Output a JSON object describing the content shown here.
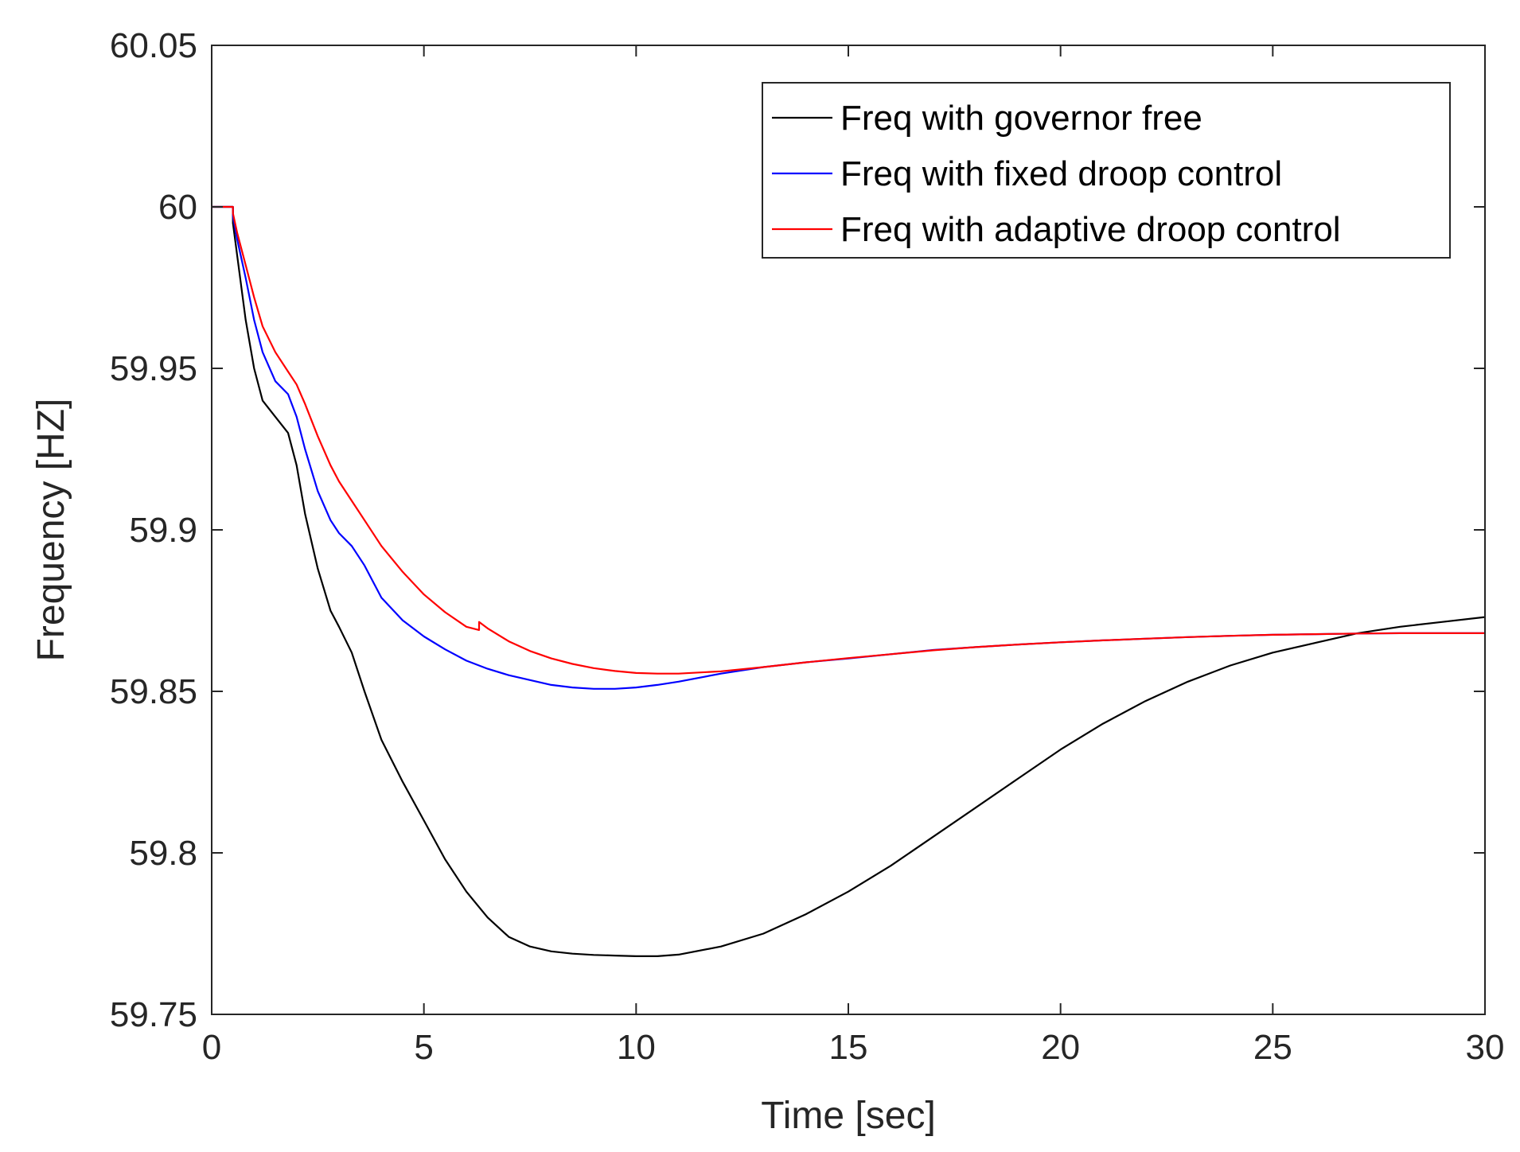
{
  "chart_data": {
    "type": "line",
    "title": "",
    "xlabel": "Time [sec]",
    "ylabel": "Frequency [HZ]",
    "xlim": [
      0,
      30
    ],
    "ylim": [
      59.75,
      60.05
    ],
    "xticks": [
      0,
      5,
      10,
      15,
      20,
      25,
      30
    ],
    "xtick_labels": [
      "0",
      "5",
      "10",
      "15",
      "20",
      "25",
      "30"
    ],
    "yticks": [
      59.75,
      59.8,
      59.85,
      59.9,
      59.95,
      60,
      60.05
    ],
    "ytick_labels": [
      "59.75",
      "59.8",
      "59.85",
      "59.9",
      "59.95",
      "60",
      "60.05"
    ],
    "grid": false,
    "legend_position": "top-right",
    "series": [
      {
        "name": "Freq with governor free",
        "color": "#000000",
        "x": [
          0,
          0.5,
          0.5,
          0.6,
          0.8,
          1.0,
          1.2,
          1.5,
          1.8,
          2.0,
          2.2,
          2.5,
          2.8,
          3.0,
          3.3,
          3.6,
          4.0,
          4.5,
          5.0,
          5.5,
          6.0,
          6.5,
          7.0,
          7.5,
          8.0,
          8.5,
          9.0,
          9.5,
          10.0,
          10.5,
          11.0,
          12.0,
          13.0,
          14.0,
          15.0,
          16.0,
          17.0,
          18.0,
          19.0,
          20.0,
          21.0,
          22.0,
          23.0,
          24.0,
          25.0,
          26.0,
          27.0,
          28.0,
          29.0,
          30.0
        ],
        "y": [
          60.0,
          60.0,
          59.995,
          59.985,
          59.965,
          59.95,
          59.94,
          59.935,
          59.93,
          59.92,
          59.905,
          59.888,
          59.875,
          59.87,
          59.862,
          59.85,
          59.835,
          59.822,
          59.81,
          59.798,
          59.788,
          59.78,
          59.774,
          59.771,
          59.7695,
          59.7688,
          59.7684,
          59.7682,
          59.768,
          59.768,
          59.7685,
          59.771,
          59.775,
          59.781,
          59.788,
          59.796,
          59.805,
          59.814,
          59.823,
          59.832,
          59.84,
          59.847,
          59.853,
          59.858,
          59.862,
          59.865,
          59.868,
          59.87,
          59.8715,
          59.873
        ]
      },
      {
        "name": "Freq with fixed droop control",
        "color": "#0000ff",
        "x": [
          0,
          0.5,
          0.5,
          0.6,
          0.8,
          1.0,
          1.2,
          1.5,
          1.8,
          2.0,
          2.2,
          2.5,
          2.8,
          3.0,
          3.3,
          3.6,
          4.0,
          4.5,
          5.0,
          5.5,
          6.0,
          6.5,
          7.0,
          7.5,
          8.0,
          8.5,
          9.0,
          9.5,
          10.0,
          10.5,
          11.0,
          12.0,
          13.0,
          14.0,
          15.0,
          16.0,
          17.0,
          18.0,
          19.0,
          20.0,
          21.0,
          22.0,
          23.0,
          24.0,
          25.0,
          26.0,
          27.0,
          28.0,
          29.0,
          30.0
        ],
        "y": [
          60.0,
          60.0,
          59.997,
          59.99,
          59.978,
          59.965,
          59.955,
          59.946,
          59.942,
          59.935,
          59.925,
          59.912,
          59.903,
          59.899,
          59.895,
          59.889,
          59.879,
          59.872,
          59.867,
          59.863,
          59.8595,
          59.857,
          59.855,
          59.8535,
          59.852,
          59.8512,
          59.8508,
          59.8508,
          59.8512,
          59.852,
          59.853,
          59.8555,
          59.8575,
          59.859,
          59.8602,
          59.8615,
          59.8628,
          59.8637,
          59.8645,
          59.8652,
          59.8658,
          59.8663,
          59.8668,
          59.8672,
          59.8675,
          59.8677,
          59.8679,
          59.868,
          59.868,
          59.868
        ]
      },
      {
        "name": "Freq with adaptive droop control",
        "color": "#ff0000",
        "x": [
          0,
          0.5,
          0.5,
          0.6,
          0.8,
          1.0,
          1.2,
          1.5,
          1.8,
          2.0,
          2.2,
          2.5,
          2.8,
          3.0,
          3.3,
          3.6,
          4.0,
          4.5,
          5.0,
          5.5,
          6.0,
          6.3,
          6.3,
          6.5,
          7.0,
          7.5,
          8.0,
          8.5,
          9.0,
          9.5,
          10.0,
          10.5,
          11.0,
          12.0,
          13.0,
          14.0,
          15.0,
          16.0,
          17.0,
          18.0,
          19.0,
          20.0,
          21.0,
          22.0,
          23.0,
          24.0,
          25.0,
          26.0,
          27.0,
          28.0,
          29.0,
          30.0
        ],
        "y": [
          60.0,
          60.0,
          59.998,
          59.992,
          59.982,
          59.972,
          59.963,
          59.955,
          59.949,
          59.945,
          59.939,
          59.929,
          59.92,
          59.915,
          59.909,
          59.903,
          59.895,
          59.887,
          59.88,
          59.8745,
          59.87,
          59.869,
          59.8715,
          59.8695,
          59.8655,
          59.8625,
          59.8602,
          59.8585,
          59.8572,
          59.8563,
          59.8557,
          59.8555,
          59.8555,
          59.8562,
          59.8575,
          59.859,
          59.8603,
          59.8615,
          59.8627,
          59.8637,
          59.8645,
          59.8652,
          59.8658,
          59.8663,
          59.8668,
          59.8672,
          59.8675,
          59.8677,
          59.8679,
          59.868,
          59.868,
          59.868
        ]
      }
    ]
  }
}
